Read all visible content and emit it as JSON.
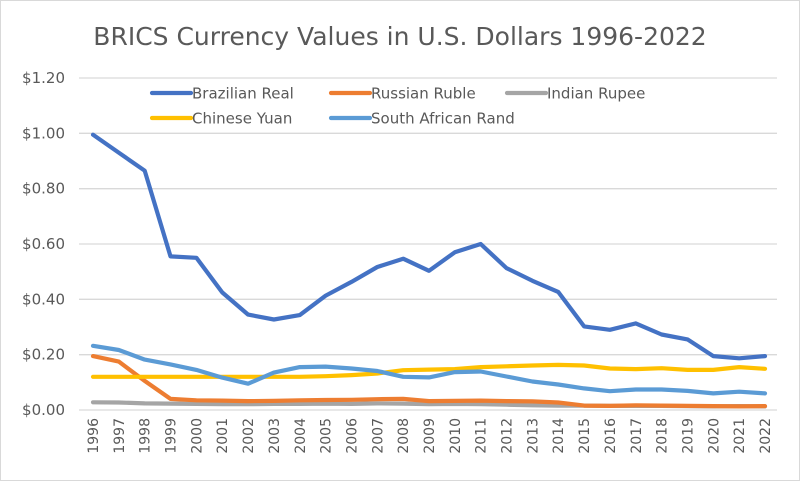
{
  "chart_data": {
    "type": "line",
    "title": "BRICS Currency Values in U.S. Dollars 1996-2022",
    "xlabel": "",
    "ylabel": "",
    "ylim": [
      0,
      1.2
    ],
    "yticks": [
      0,
      0.2,
      0.4,
      0.6,
      0.8,
      1.0,
      1.2
    ],
    "ytick_labels": [
      "$0.00",
      "$0.20",
      "$0.40",
      "$0.60",
      "$0.80",
      "$1.00",
      "$1.20"
    ],
    "grid": true,
    "legend_position": "top",
    "x": [
      "1996",
      "1997",
      "1998",
      "1999",
      "2000",
      "2001",
      "2002",
      "2003",
      "2004",
      "2005",
      "2006",
      "2007",
      "2008",
      "2009",
      "2010",
      "2011",
      "2012",
      "2013",
      "2014",
      "2015",
      "2016",
      "2017",
      "2018",
      "2019",
      "2020",
      "2021",
      "2022"
    ],
    "series": [
      {
        "name": "Brazilian Real",
        "color": "#4472C4",
        "values": [
          0.995,
          0.93,
          0.865,
          0.555,
          0.55,
          0.425,
          0.345,
          0.327,
          0.343,
          0.413,
          0.463,
          0.517,
          0.547,
          0.503,
          0.57,
          0.6,
          0.513,
          0.467,
          0.427,
          0.302,
          0.29,
          0.313,
          0.273,
          0.255,
          0.195,
          0.187,
          0.195
        ]
      },
      {
        "name": "Russian Ruble",
        "color": "#ED7D31",
        "values": [
          0.195,
          0.175,
          0.105,
          0.04,
          0.035,
          0.034,
          0.032,
          0.033,
          0.035,
          0.036,
          0.037,
          0.039,
          0.04,
          0.032,
          0.033,
          0.034,
          0.032,
          0.031,
          0.027,
          0.016,
          0.015,
          0.017,
          0.016,
          0.015,
          0.014,
          0.013,
          0.014
        ]
      },
      {
        "name": "Indian Rupee",
        "color": "#A5A5A5",
        "values": [
          0.028,
          0.027,
          0.024,
          0.023,
          0.022,
          0.021,
          0.021,
          0.022,
          0.022,
          0.023,
          0.022,
          0.024,
          0.023,
          0.021,
          0.022,
          0.021,
          0.019,
          0.017,
          0.016,
          0.016,
          0.015,
          0.015,
          0.015,
          0.014,
          0.013,
          0.014,
          0.013
        ]
      },
      {
        "name": "Chinese Yuan",
        "color": "#FFC000",
        "values": [
          0.12,
          0.12,
          0.12,
          0.12,
          0.12,
          0.12,
          0.12,
          0.12,
          0.12,
          0.122,
          0.126,
          0.132,
          0.144,
          0.146,
          0.148,
          0.155,
          0.158,
          0.161,
          0.163,
          0.161,
          0.15,
          0.148,
          0.151,
          0.145,
          0.145,
          0.155,
          0.149
        ]
      },
      {
        "name": "South African Rand",
        "color": "#5B9BD5",
        "values": [
          0.232,
          0.217,
          0.182,
          0.165,
          0.145,
          0.117,
          0.095,
          0.135,
          0.155,
          0.157,
          0.15,
          0.141,
          0.12,
          0.118,
          0.137,
          0.139,
          0.121,
          0.103,
          0.092,
          0.078,
          0.068,
          0.074,
          0.074,
          0.069,
          0.06,
          0.066,
          0.06
        ]
      }
    ]
  }
}
